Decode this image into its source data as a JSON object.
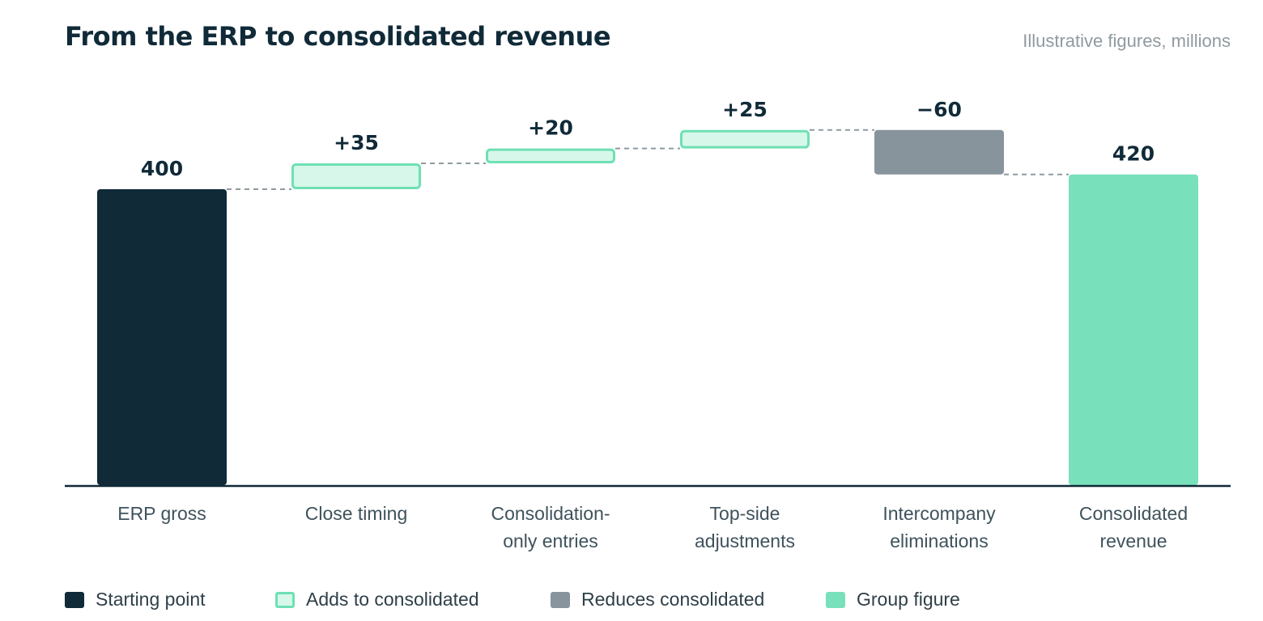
{
  "header": {
    "title": "From the ERP to consolidated revenue",
    "note": "Illustrative figures, millions"
  },
  "colors": {
    "start": "#102a38",
    "add_fill": "#d6f7ea",
    "add_stroke": "#6fe0b4",
    "reduce": "#87949b",
    "total": "#78e0bb",
    "axis": "#102a38",
    "connector": "#8f9aa0",
    "label_text": "#102a38",
    "category_text": "#3f525c"
  },
  "legend": [
    {
      "label": "Starting point",
      "kind": "start"
    },
    {
      "label": "Adds to consolidated",
      "kind": "add"
    },
    {
      "label": "Reduces consolidated",
      "kind": "reduce"
    },
    {
      "label": "Group figure",
      "kind": "total"
    }
  ],
  "chart_data": {
    "type": "bar",
    "subtype": "waterfall",
    "title": "From the ERP to consolidated revenue",
    "categories": [
      [
        "ERP gross"
      ],
      [
        "Close timing"
      ],
      [
        "Consolidation-",
        "only entries"
      ],
      [
        "Top-side",
        "adjustments"
      ],
      [
        "Intercompany",
        "eliminations"
      ],
      [
        "Consolidated",
        "revenue"
      ]
    ],
    "values": [
      400,
      35,
      20,
      25,
      -60,
      420
    ],
    "kinds": [
      "start",
      "add",
      "add",
      "add",
      "reduce",
      "total"
    ],
    "value_labels": [
      "400",
      "+35",
      "+20",
      "+25",
      "−60",
      "420"
    ],
    "ylim": [
      0,
      500
    ],
    "grid": false,
    "legend_position": "bottom-left"
  }
}
